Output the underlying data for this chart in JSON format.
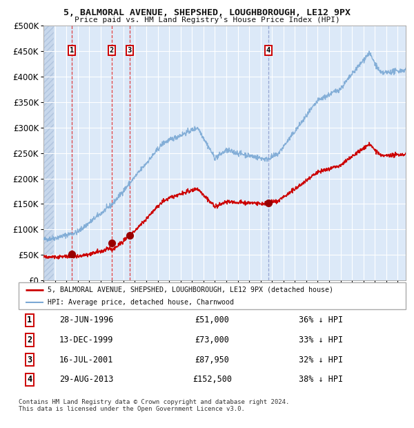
{
  "title": "5, BALMORAL AVENUE, SHEPSHED, LOUGHBOROUGH, LE12 9PX",
  "subtitle": "Price paid vs. HM Land Registry's House Price Index (HPI)",
  "ylim": [
    0,
    500000
  ],
  "yticks": [
    0,
    50000,
    100000,
    150000,
    200000,
    250000,
    300000,
    350000,
    400000,
    450000,
    500000
  ],
  "ytick_labels": [
    "£0",
    "£50K",
    "£100K",
    "£150K",
    "£200K",
    "£250K",
    "£300K",
    "£350K",
    "£400K",
    "£450K",
    "£500K"
  ],
  "xlim_start": 1994.0,
  "xlim_end": 2025.7,
  "bg_color": "#dce9f8",
  "hatch_color": "#c8d8ec",
  "grid_color": "#ffffff",
  "red_line_color": "#cc0000",
  "blue_line_color": "#7aa8d4",
  "marker_color": "#990000",
  "vline_red_color": "#dd2222",
  "vline_blue_color": "#8899cc",
  "purchases": [
    {
      "label": "1",
      "date_num": 1996.49,
      "price": 51000,
      "date_str": "28-JUN-1996",
      "pct": "36%"
    },
    {
      "label": "2",
      "date_num": 1999.95,
      "price": 73000,
      "date_str": "13-DEC-1999",
      "pct": "33%"
    },
    {
      "label": "3",
      "date_num": 2001.54,
      "price": 87950,
      "date_str": "16-JUL-2001",
      "pct": "32%"
    },
    {
      "label": "4",
      "date_num": 2013.66,
      "price": 152500,
      "date_str": "29-AUG-2013",
      "pct": "38%"
    }
  ],
  "legend_line1": "5, BALMORAL AVENUE, SHEPSHED, LOUGHBOROUGH, LE12 9PX (detached house)",
  "legend_line2": "HPI: Average price, detached house, Charnwood",
  "footnote": "Contains HM Land Registry data © Crown copyright and database right 2024.\nThis data is licensed under the Open Government Licence v3.0.",
  "table_rows": [
    [
      "1",
      "28-JUN-1996",
      "£51,000",
      "36% ↓ HPI"
    ],
    [
      "2",
      "13-DEC-1999",
      "£73,000",
      "33% ↓ HPI"
    ],
    [
      "3",
      "16-JUL-2001",
      "£87,950",
      "32% ↓ HPI"
    ],
    [
      "4",
      "29-AUG-2013",
      "£152,500",
      "38% ↓ HPI"
    ]
  ]
}
